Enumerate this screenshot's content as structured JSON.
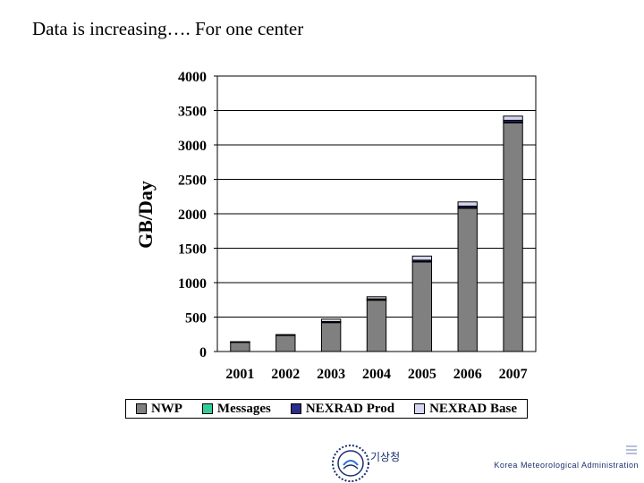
{
  "slide": {
    "title": "Data is increasing…. For one center"
  },
  "chart_data": {
    "type": "bar",
    "stacked": true,
    "categories": [
      "2001",
      "2002",
      "2003",
      "2004",
      "2005",
      "2006",
      "2007"
    ],
    "series": [
      {
        "name": "NWP",
        "color": "#808080",
        "values": [
          135,
          235,
          420,
          745,
          1300,
          2080,
          3320
        ]
      },
      {
        "name": "Messages",
        "color": "#33cc99",
        "values": [
          3,
          4,
          5,
          6,
          8,
          10,
          12
        ]
      },
      {
        "name": "NEXRAD Prod",
        "color": "#2b2b8c",
        "values": [
          5,
          7,
          10,
          14,
          18,
          22,
          26
        ]
      },
      {
        "name": "NEXRAD Base",
        "color": "#d6d6f0",
        "values": [
          0,
          0,
          35,
          30,
          60,
          60,
          60
        ]
      }
    ],
    "ylabel": "GB/Day",
    "xlabel": "",
    "ylim": [
      0,
      4000
    ],
    "yticks": [
      "0",
      "500",
      "1000",
      "1500",
      "2000",
      "2500",
      "3000",
      "3500",
      "4000"
    ],
    "grid": true,
    "legend_position": "bottom"
  },
  "footer": {
    "korean_text": "기상청",
    "org_name": "Korea Meteorological Administration"
  }
}
